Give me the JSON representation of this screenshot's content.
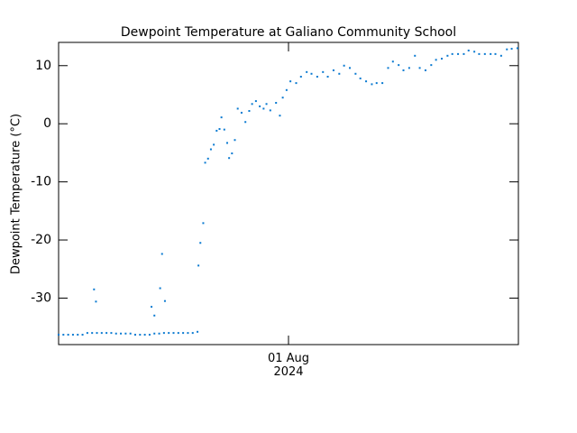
{
  "chart_data": {
    "type": "scatter",
    "title": "Dewpoint Temperature at Galiano Community School",
    "ylabel": "Dewpoint Temperature (°C)",
    "color": "#0a7ad1",
    "xlim": [
      0,
      48
    ],
    "xticks": [
      {
        "value": 24,
        "label": "01 Aug\n2024"
      }
    ],
    "ylim": [
      -38,
      14
    ],
    "yticks": [
      -30,
      -20,
      -10,
      0,
      10
    ],
    "x": [
      0,
      0.5,
      1,
      1.5,
      2,
      2.5,
      3,
      3.5,
      4,
      4.5,
      5,
      5.5,
      6,
      6.5,
      7,
      7.5,
      8,
      8.5,
      9,
      9.5,
      10,
      10.5,
      11,
      11.5,
      12,
      12.5,
      13,
      13.5,
      14,
      14.5,
      3.7,
      3.9,
      9.7,
      10.0,
      10.6,
      10.8,
      11.1,
      14.6,
      14.8,
      15.1,
      15.3,
      15.6,
      15.9,
      16.2,
      16.5,
      16.8,
      17.0,
      17.3,
      17.6,
      17.8,
      18.1,
      18.4,
      18.7,
      19.1,
      19.5,
      19.9,
      20.2,
      20.6,
      21.0,
      21.4,
      21.7,
      22.1,
      22.7,
      23.1,
      23.4,
      23.8,
      24.2,
      24.8,
      25.3,
      25.9,
      26.4,
      27.0,
      27.6,
      28.1,
      28.7,
      29.3,
      29.8,
      30.4,
      31.0,
      31.5,
      32.1,
      32.7,
      33.2,
      33.8,
      34.4,
      34.9,
      35.5,
      36.0,
      36.6,
      37.2,
      37.7,
      38.3,
      38.9,
      39.4,
      40.0,
      40.6,
      41.1,
      41.7,
      42.3,
      42.8,
      43.4,
      43.9,
      44.5,
      45.1,
      45.6,
      46.2,
      46.8,
      47.3,
      47.9
    ],
    "values": [
      -36.3,
      -36.3,
      -36.3,
      -36.3,
      -36.3,
      -36.3,
      -36.0,
      -36.0,
      -36.0,
      -36.0,
      -36.0,
      -36.0,
      -36.1,
      -36.1,
      -36.1,
      -36.1,
      -36.3,
      -36.3,
      -36.3,
      -36.3,
      -36.1,
      -36.1,
      -36.0,
      -36.0,
      -36.0,
      -36.0,
      -36.0,
      -36.0,
      -36.0,
      -35.8,
      -28.5,
      -30.6,
      -31.5,
      -33,
      -28.3,
      -22.4,
      -30.5,
      -24.4,
      -20.5,
      -17.1,
      -6.7,
      -6.0,
      -4.4,
      -3.6,
      -1.2,
      -0.9,
      1.1,
      -1.0,
      -3.3,
      -5.9,
      -5.1,
      -2.8,
      2.6,
      1.9,
      0.3,
      2.2,
      3.4,
      3.9,
      3.0,
      2.6,
      3.4,
      2.3,
      3.6,
      1.4,
      4.5,
      5.8,
      7.3,
      7.0,
      8.1,
      8.9,
      8.6,
      8.1,
      8.9,
      8.1,
      9.2,
      8.6,
      10.0,
      9.6,
      8.6,
      7.8,
      7.3,
      6.8,
      7.0,
      7.0,
      9.6,
      10.7,
      10.1,
      9.2,
      9.6,
      11.7,
      9.6,
      9.2,
      10.1,
      11.0,
      11.2,
      11.7,
      12.0,
      12.0,
      12.0,
      12.6,
      12.4,
      12.0,
      12.0,
      12.0,
      12.0,
      11.7,
      12.8,
      12.9,
      13.0
    ]
  }
}
